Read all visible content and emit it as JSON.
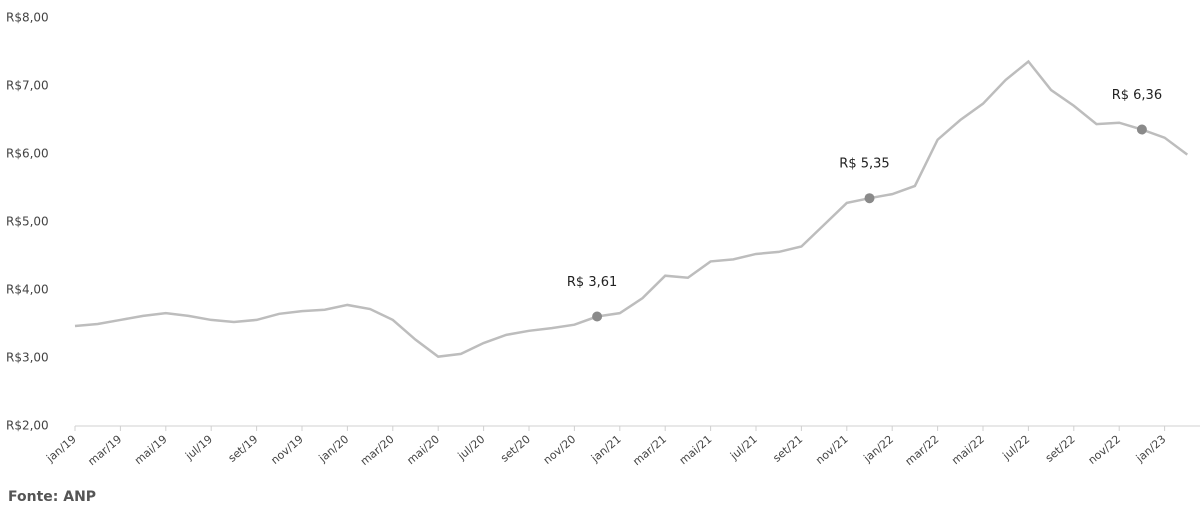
{
  "chart_data": {
    "type": "line",
    "categories": [
      "jan/19",
      null,
      "mar/19",
      null,
      "mai/19",
      null,
      "jul/19",
      null,
      "set/19",
      null,
      "nov/19",
      null,
      "jan/20",
      null,
      "mar/20",
      null,
      "mai/20",
      null,
      "jul/20",
      null,
      "set/20",
      null,
      "nov/20",
      null,
      "jan/21",
      null,
      "mar/21",
      null,
      "mai/21",
      null,
      "jul/21",
      null,
      "set/21",
      null,
      "nov/21",
      null,
      "jan/22",
      null,
      "mar/22",
      null,
      "mai/22",
      null,
      "jul/22",
      null,
      "set/22",
      null,
      "nov/22",
      null,
      "jan/23",
      null
    ],
    "series": [
      {
        "name": null,
        "color": "#bdbdbd",
        "marker_color": "#8a8a8a",
        "values": [
          3.47,
          3.5,
          3.56,
          3.62,
          3.66,
          3.62,
          3.56,
          3.53,
          3.56,
          3.65,
          3.69,
          3.71,
          3.78,
          3.72,
          3.56,
          3.27,
          3.02,
          3.06,
          3.22,
          3.34,
          3.4,
          3.44,
          3.49,
          3.61,
          3.66,
          3.88,
          4.21,
          4.18,
          4.42,
          4.45,
          4.53,
          4.56,
          4.64,
          4.96,
          5.28,
          5.35,
          5.41,
          5.53,
          6.21,
          6.5,
          6.74,
          7.09,
          7.36,
          6.94,
          6.71,
          6.44,
          6.46,
          6.36,
          6.24,
          5.99
        ],
        "value_labels": [
          null,
          null,
          null,
          null,
          null,
          null,
          null,
          null,
          null,
          null,
          null,
          null,
          null,
          null,
          null,
          null,
          null,
          null,
          null,
          null,
          null,
          null,
          null,
          "R$ 3,61",
          null,
          null,
          null,
          null,
          null,
          null,
          null,
          null,
          null,
          null,
          null,
          "R$ 5,35",
          null,
          null,
          null,
          null,
          null,
          null,
          null,
          null,
          null,
          null,
          null,
          "R$ 6,36",
          null,
          null
        ]
      }
    ],
    "ylim": [
      2,
      8
    ],
    "yticks": [
      {
        "value": 2,
        "label": "R$2,00"
      },
      {
        "value": 3,
        "label": "R$3,00"
      },
      {
        "value": 4,
        "label": "R$4,00"
      },
      {
        "value": 5,
        "label": "R$5,00"
      },
      {
        "value": 6,
        "label": "R$6,00"
      },
      {
        "value": 7,
        "label": "R$7,00"
      },
      {
        "value": 8,
        "label": "R$8,00"
      }
    ],
    "grid": false,
    "source": "Fonte: ANP"
  }
}
